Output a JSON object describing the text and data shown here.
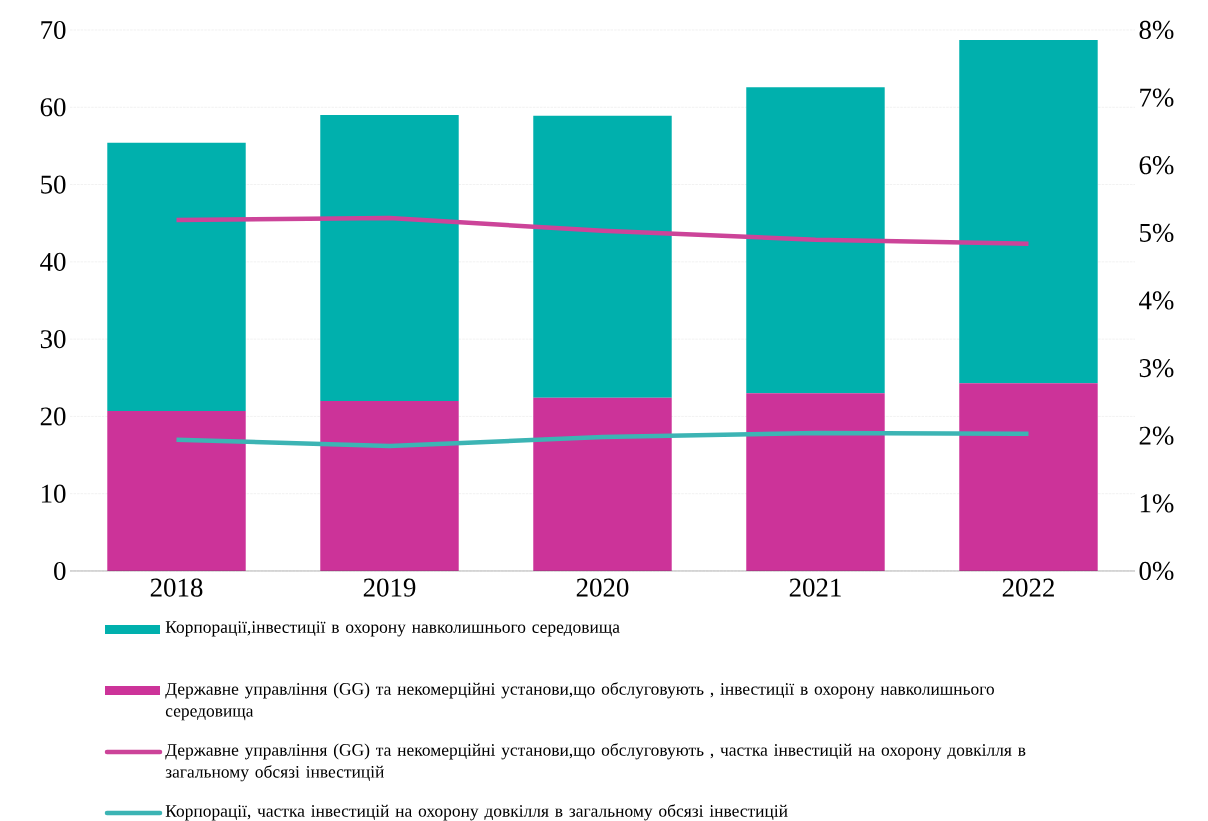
{
  "chart_data": {
    "type": "bar",
    "stacked": true,
    "categories": [
      "2018",
      "2019",
      "2020",
      "2021",
      "2022"
    ],
    "series": [
      {
        "name": "Державне управління (GG) та некомерційні установи,що обслуговують , інвестиції в охорону навколишнього середовища",
        "color": "#cc3399",
        "values": [
          20.7,
          22.0,
          22.4,
          23.0,
          24.3
        ]
      },
      {
        "name": "Корпорації,інвестиції в охорону навколишнього середовища",
        "color": "#00b0ad",
        "values": [
          34.7,
          37.0,
          36.5,
          39.6,
          44.4
        ]
      },
      {
        "name": "Державне управління (GG) та некомерційні установи,що обслуговують , частка інвестицій на охорону довкілля в загальному обсязі інвестицій",
        "type": "line",
        "axis": "y2",
        "color": "#cc4499",
        "values": [
          5.19,
          5.22,
          5.03,
          4.9,
          4.84
        ]
      },
      {
        "name": "Корпорації, частка інвестицій на охорону довкілля в загальному обсязі інвестицій",
        "type": "line",
        "axis": "y2",
        "color": "#3cb4b4",
        "values": [
          1.94,
          1.85,
          1.98,
          2.04,
          2.03
        ]
      }
    ],
    "ylim": [
      0,
      70
    ],
    "yticks": [
      0,
      10,
      20,
      30,
      40,
      50,
      60,
      70
    ],
    "y2lim": [
      0,
      8
    ],
    "y2ticks": [
      {
        "value": 0,
        "label": "0%"
      },
      {
        "value": 1,
        "label": "1%"
      },
      {
        "value": 2,
        "label": "2%"
      },
      {
        "value": 3,
        "label": "3%"
      },
      {
        "value": 4,
        "label": "4%"
      },
      {
        "value": 5,
        "label": "5%"
      },
      {
        "value": 6,
        "label": "6%"
      },
      {
        "value": 7,
        "label": "7%"
      },
      {
        "value": 8,
        "label": "8%"
      }
    ],
    "grid": "y",
    "legend": "bottom"
  }
}
